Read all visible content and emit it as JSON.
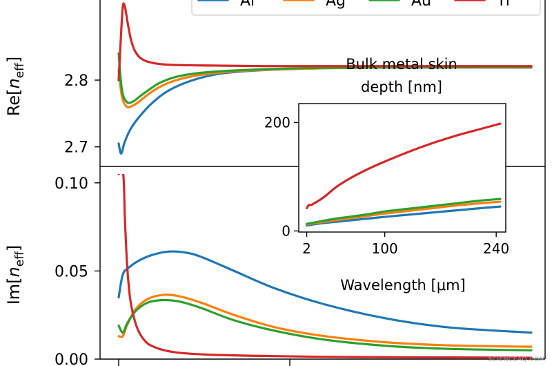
{
  "watermark": "SCIENCEAQ.COM",
  "chart_data": [
    {
      "id": "top",
      "type": "line",
      "ylabel_base": "Re[",
      "ylabel_var": "n",
      "ylabel_sub": "eff",
      "ylabel_end": "]",
      "xlim": [
        0,
        100
      ],
      "ylim": [
        2.68,
        2.92
      ],
      "yticks": [
        2.7,
        2.8
      ],
      "ytick_labels": [
        "2.7",
        "2.8"
      ],
      "legend": {
        "placement": "top-right",
        "entries": [
          "Al",
          "Ag",
          "Au",
          "Ti"
        ]
      },
      "series": [
        {
          "name": "Al",
          "color": "#1f77b4",
          "x": [
            0,
            0.6,
            1.5,
            3,
            5,
            8,
            12,
            18,
            25,
            35,
            50,
            65,
            80,
            100
          ],
          "y": [
            2.705,
            2.69,
            2.708,
            2.728,
            2.745,
            2.765,
            2.784,
            2.8,
            2.81,
            2.815,
            2.818,
            2.819,
            2.819,
            2.819
          ]
        },
        {
          "name": "Ag",
          "color": "#ff7f0e",
          "x": [
            0,
            0.8,
            2,
            3.5,
            5,
            7,
            10,
            14,
            20,
            30,
            45,
            65,
            100
          ],
          "y": [
            2.815,
            2.775,
            2.76,
            2.762,
            2.768,
            2.778,
            2.79,
            2.8,
            2.808,
            2.814,
            2.817,
            2.819,
            2.819
          ]
        },
        {
          "name": "Au",
          "color": "#2ca02c",
          "x": [
            0,
            0.8,
            2,
            3.5,
            5,
            7,
            10,
            14,
            20,
            30,
            45,
            65,
            100
          ],
          "y": [
            2.84,
            2.785,
            2.767,
            2.768,
            2.775,
            2.784,
            2.796,
            2.805,
            2.811,
            2.815,
            2.818,
            2.819,
            2.819
          ]
        },
        {
          "name": "Ti",
          "color": "#d62728",
          "x": [
            0,
            0.5,
            1,
            1.5,
            2.2,
            3,
            4,
            5.5,
            8,
            12,
            20,
            35,
            60,
            100
          ],
          "y": [
            2.8,
            2.86,
            2.91,
            2.91,
            2.885,
            2.86,
            2.843,
            2.832,
            2.826,
            2.823,
            2.822,
            2.821,
            2.821,
            2.821
          ]
        }
      ]
    },
    {
      "id": "bottom",
      "type": "line",
      "ylabel_base": "Im[",
      "ylabel_var": "n",
      "ylabel_sub": "eff",
      "ylabel_end": "]",
      "xlim": [
        0,
        100
      ],
      "ylim": [
        0.0,
        0.105
      ],
      "yticks": [
        0.0,
        0.05,
        0.1
      ],
      "ytick_labels": [
        "0.00",
        "0.05",
        "0.10"
      ],
      "series": [
        {
          "name": "Al",
          "color": "#1f77b4",
          "x": [
            0,
            1,
            2.5,
            5,
            8,
            12,
            16,
            20,
            28,
            38,
            50,
            65,
            80,
            100
          ],
          "y": [
            0.035,
            0.048,
            0.052,
            0.056,
            0.059,
            0.061,
            0.0605,
            0.058,
            0.05,
            0.04,
            0.031,
            0.023,
            0.018,
            0.015
          ]
        },
        {
          "name": "Ag",
          "color": "#ff7f0e",
          "x": [
            0,
            1,
            2,
            4,
            7,
            11,
            15,
            20,
            28,
            38,
            50,
            65,
            80,
            100
          ],
          "y": [
            0.013,
            0.013,
            0.019,
            0.028,
            0.034,
            0.0365,
            0.0355,
            0.032,
            0.025,
            0.018,
            0.013,
            0.0095,
            0.0078,
            0.007
          ]
        },
        {
          "name": "Au",
          "color": "#2ca02c",
          "x": [
            0,
            1,
            2,
            4,
            7,
            11,
            15,
            20,
            28,
            38,
            50,
            65,
            80,
            100
          ],
          "y": [
            0.019,
            0.015,
            0.02,
            0.027,
            0.032,
            0.0335,
            0.0325,
            0.029,
            0.022,
            0.016,
            0.011,
            0.0075,
            0.0058,
            0.005
          ]
        },
        {
          "name": "Ti",
          "color": "#d62728",
          "x": [
            0,
            1.1,
            1.5,
            2,
            2.5,
            3,
            4,
            5,
            6.5,
            8,
            11,
            15,
            22,
            35,
            55,
            100
          ],
          "y": [
            0.105,
            0.105,
            0.08,
            0.055,
            0.04,
            0.031,
            0.021,
            0.015,
            0.01,
            0.0075,
            0.005,
            0.0035,
            0.0025,
            0.0018,
            0.0012,
            0.0008
          ]
        }
      ]
    },
    {
      "id": "inset",
      "type": "line",
      "title_lines": [
        "Bulk metal skin",
        "depth [nm]"
      ],
      "xlabel": "Wavelength [μm]",
      "xlim": [
        -8,
        252
      ],
      "ylim": [
        -2,
        235
      ],
      "xticks": [
        2,
        100,
        240
      ],
      "xtick_labels": [
        "2",
        "100",
        "240"
      ],
      "yticks": [
        0,
        200
      ],
      "ytick_labels": [
        "0",
        "200"
      ],
      "series": [
        {
          "name": "Al",
          "color": "#1f77b4",
          "x": [
            2,
            20,
            40,
            60,
            80,
            100,
            130,
            160,
            190,
            220,
            245
          ],
          "y": [
            10,
            14,
            17,
            20,
            23,
            26,
            30,
            34,
            38,
            42,
            45
          ]
        },
        {
          "name": "Ag",
          "color": "#ff7f0e",
          "x": [
            2,
            20,
            40,
            60,
            80,
            100,
            130,
            160,
            190,
            220,
            245
          ],
          "y": [
            12,
            16,
            20,
            24,
            28,
            32,
            37,
            42,
            47,
            51,
            54
          ]
        },
        {
          "name": "Au",
          "color": "#2ca02c",
          "x": [
            2,
            20,
            40,
            60,
            80,
            100,
            130,
            160,
            190,
            220,
            245
          ],
          "y": [
            13,
            18,
            23,
            27,
            31,
            36,
            41,
            46,
            51,
            56,
            59
          ]
        },
        {
          "name": "Ti",
          "color": "#d62728",
          "x": [
            2,
            5,
            8,
            10,
            15,
            25,
            40,
            60,
            80,
            100,
            130,
            160,
            190,
            220,
            245
          ],
          "y": [
            42,
            48,
            48,
            50,
            54,
            64,
            82,
            100,
            115,
            128,
            146,
            162,
            176,
            188,
            198
          ]
        }
      ]
    }
  ]
}
